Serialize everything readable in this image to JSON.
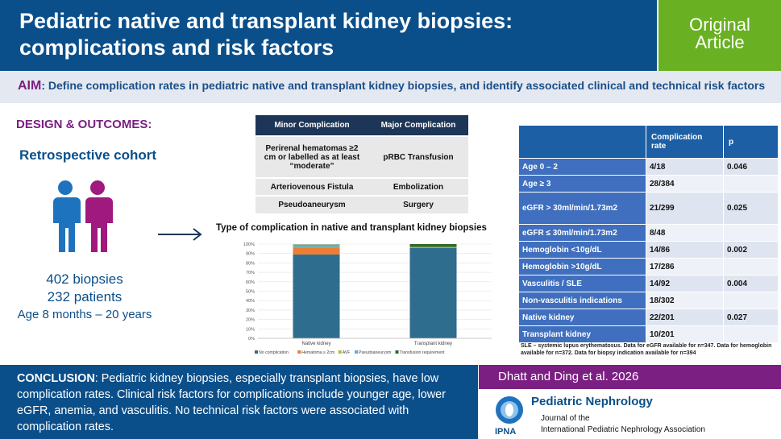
{
  "header": {
    "title": "Pediatric native and transplant kidney biopsies: complications and risk factors",
    "badge_line1": "Original",
    "badge_line2": "Article"
  },
  "aim": {
    "label": "AIM",
    "text": ": Define complication rates in pediatric native and transplant kidney biopsies, and identify associated clinical and technical risk factors"
  },
  "design": {
    "label": "DESIGN & OUTCOMES:",
    "cohort": "Retrospective cohort",
    "biopsies": "402 biopsies",
    "patients": "232 patients",
    "age": "Age 8 months – 20 years"
  },
  "complications": {
    "headers": [
      "Minor Complication",
      "Major Complication"
    ],
    "rows": [
      [
        "Perirenal hematomas ≥2 cm or labelled as at least “moderate”",
        "pRBC Transfusion"
      ],
      [
        "Arteriovenous Fistula",
        "Embolization"
      ],
      [
        "Pseudoaneurysm",
        "Surgery"
      ]
    ]
  },
  "chart_data": {
    "type": "bar",
    "title": "Type of complication in native and transplant kidney biopsies",
    "categories": [
      "Native kidney",
      "Transplant kidney"
    ],
    "ylim": [
      0,
      100
    ],
    "yticks": [
      "0%",
      "10%",
      "20%",
      "30%",
      "40%",
      "50%",
      "60%",
      "70%",
      "80%",
      "90%",
      "100%"
    ],
    "stacked": true,
    "series": [
      {
        "name": "No complication",
        "values": [
          89,
          96
        ],
        "color": "#2e6d8e"
      },
      {
        "name": "Hematoma ≥ 2cm",
        "values": [
          7.5,
          0
        ],
        "color": "#ed7d31"
      },
      {
        "name": "AVF",
        "values": [
          0.5,
          1
        ],
        "color": "#b5bd34"
      },
      {
        "name": "Pseudoaneurysm",
        "values": [
          2,
          0
        ],
        "color": "#5dade2"
      },
      {
        "name": "Transfusion requirement",
        "values": [
          0.5,
          3
        ],
        "color": "#2d6a2d"
      }
    ],
    "legend": "bottom"
  },
  "risk": {
    "headers": [
      "",
      "Complication rate",
      "p"
    ],
    "rows": [
      {
        "label": "Age 0 – 2",
        "rate": "4/18",
        "p": "0.046"
      },
      {
        "label": "Age ≥ 3",
        "rate": "28/384",
        "p": ""
      },
      {
        "label": "eGFR > 30ml/min/1.73m2",
        "rate": "21/299",
        "p": "0.025"
      },
      {
        "label": "eGFR ≤ 30ml/min/1.73m2",
        "rate": "8/48",
        "p": ""
      },
      {
        "label": "Hemoglobin  <10g/dL",
        "rate": "14/86",
        "p": "0.002"
      },
      {
        "label": "Hemoglobin >10g/dL",
        "rate": "17/286",
        "p": ""
      },
      {
        "label": "Vasculitis / SLE",
        "rate": "14/92",
        "p": "0.004"
      },
      {
        "label": "Non-vasculitis indications",
        "rate": "18/302",
        "p": ""
      },
      {
        "label": "Native kidney",
        "rate": "22/201",
        "p": "0.027"
      },
      {
        "label": "Transplant kidney",
        "rate": "10/201",
        "p": ""
      }
    ],
    "footnote": "SLE – systemic lupus erythematosus. Data for eGFR available for n=347. Data for hemoglobin available for n=372. Data for biopsy indication available for n=394"
  },
  "conclusion": {
    "label": "CONCLUSION",
    "text": ": Pediatric kidney biopsies, especially transplant biopsies, have low complication rates. Clinical risk factors for complications include younger age, lower eGFR, anemia, and vasculitis. No technical risk factors were associated with complication rates."
  },
  "citation": {
    "authors": "Dhatt and Ding et al. 2026",
    "journal": "Pediatric Nephrology",
    "sub1": "Journal of the",
    "sub2": "International Pediatric Nephrology Association",
    "logo_text": "IPNA"
  },
  "colors": {
    "primary": "#0b4f8a",
    "accent": "#7b1f82",
    "badge": "#6ab023"
  }
}
